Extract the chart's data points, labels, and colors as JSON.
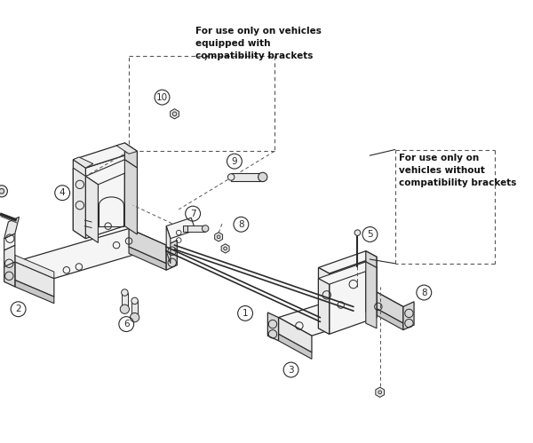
{
  "bg_color": "#ffffff",
  "lc": "#2a2a2a",
  "dc": "#555555",
  "fc_light": "#f5f5f5",
  "fc_mid": "#e8e8e8",
  "fc_dark": "#d8d8d8",
  "fc_darker": "#c8c8c8",
  "ann_top": "For use only on vehicles\nequipped with\ncompatibility brackets",
  "ann_right": "For use only on\nvehicles without\ncompatibility brackets",
  "figsize": [
    6.0,
    4.99
  ],
  "dpi": 100
}
